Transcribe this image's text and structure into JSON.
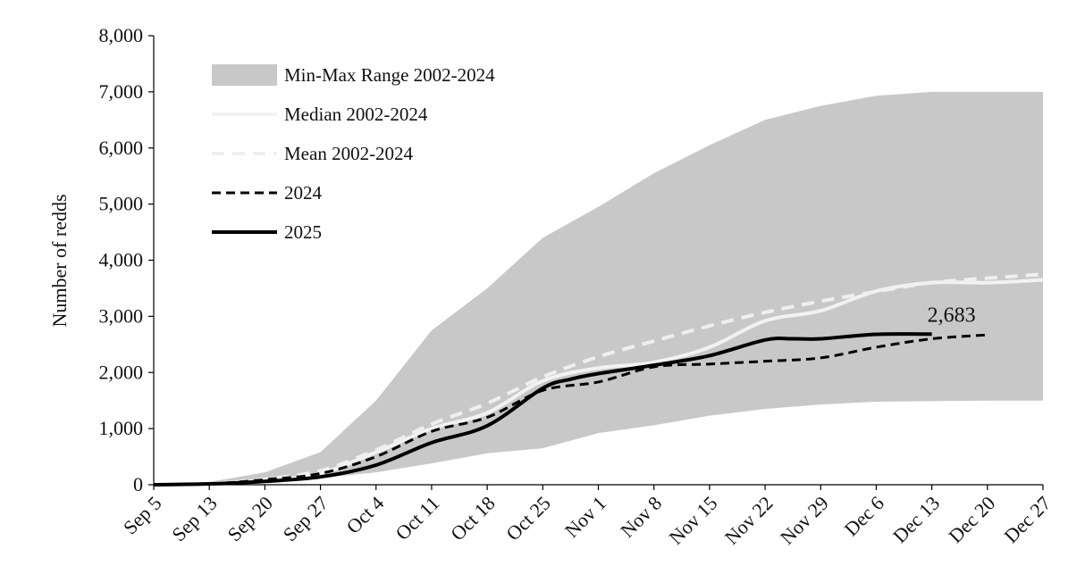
{
  "chart_data": {
    "type": "area",
    "title": "",
    "xlabel": "",
    "ylabel": "Number of redds",
    "x_categories": [
      "Sep 5",
      "Sep 13",
      "Sep 20",
      "Sep 27",
      "Oct 4",
      "Oct 11",
      "Oct 18",
      "Oct 25",
      "Nov 1",
      "Nov 8",
      "Nov 15",
      "Nov 22",
      "Nov 29",
      "Dec 6",
      "Dec 13",
      "Dec 20",
      "Dec 27"
    ],
    "y_ticks": [
      "0",
      "1,000",
      "2,000",
      "3,000",
      "4,000",
      "5,000",
      "6,000",
      "7,000",
      "8,000"
    ],
    "ylim": [
      0,
      8000
    ],
    "legend_position": "top-left",
    "series": [
      {
        "name": "Min-Max Range 2002-2024",
        "kind": "range",
        "color": "#c8c8c8",
        "x": [
          0,
          1,
          2,
          3,
          4,
          5,
          6,
          7,
          8,
          9,
          10,
          11,
          12,
          13,
          14,
          15,
          16
        ],
        "low": [
          0,
          0,
          30,
          120,
          220,
          380,
          560,
          650,
          920,
          1060,
          1230,
          1350,
          1430,
          1480,
          1490,
          1500,
          1500
        ],
        "high": [
          0,
          50,
          220,
          580,
          1500,
          2750,
          3500,
          4400,
          4950,
          5550,
          6050,
          6500,
          6750,
          6930,
          7000,
          7000,
          7000
        ]
      },
      {
        "name": "Median 2002-2024",
        "kind": "line",
        "color": "#f2f2f2",
        "dash": "solid",
        "x": [
          0,
          1,
          2,
          3,
          4,
          5,
          6,
          7,
          8,
          9,
          10,
          11,
          12,
          13,
          14,
          15,
          16
        ],
        "y": [
          0,
          20,
          80,
          200,
          580,
          1000,
          1280,
          1850,
          2080,
          2180,
          2450,
          2920,
          3100,
          3450,
          3600,
          3600,
          3650
        ]
      },
      {
        "name": "Mean 2002-2024",
        "kind": "line",
        "color": "#efefef",
        "dash": "dashed",
        "x": [
          0,
          1,
          2,
          3,
          4,
          5,
          6,
          7,
          8,
          9,
          10,
          11,
          12,
          13,
          14,
          15,
          16
        ],
        "y": [
          0,
          20,
          100,
          250,
          620,
          1080,
          1450,
          1920,
          2280,
          2560,
          2830,
          3070,
          3270,
          3440,
          3600,
          3680,
          3750
        ]
      },
      {
        "name": "2024",
        "kind": "line",
        "color": "#000000",
        "dash": "dashed",
        "x": [
          0,
          1,
          2,
          3,
          4,
          5,
          6,
          7,
          8,
          9,
          10,
          11,
          12,
          13,
          14,
          15
        ],
        "y": [
          0,
          15,
          90,
          200,
          500,
          950,
          1200,
          1680,
          1830,
          2100,
          2150,
          2200,
          2260,
          2450,
          2600,
          2670
        ]
      },
      {
        "name": "2025",
        "kind": "line",
        "color": "#000000",
        "dash": "solid",
        "x": [
          0,
          1,
          2,
          3,
          4,
          5,
          6,
          7,
          7.5,
          8,
          9,
          10,
          11,
          11.5,
          12,
          13,
          14
        ],
        "y": [
          0,
          15,
          60,
          140,
          350,
          750,
          1050,
          1720,
          1880,
          1980,
          2130,
          2300,
          2580,
          2600,
          2600,
          2680,
          2683
        ]
      }
    ],
    "annotations": [
      {
        "text": "2,683",
        "x": 14,
        "y": 2683
      }
    ]
  }
}
